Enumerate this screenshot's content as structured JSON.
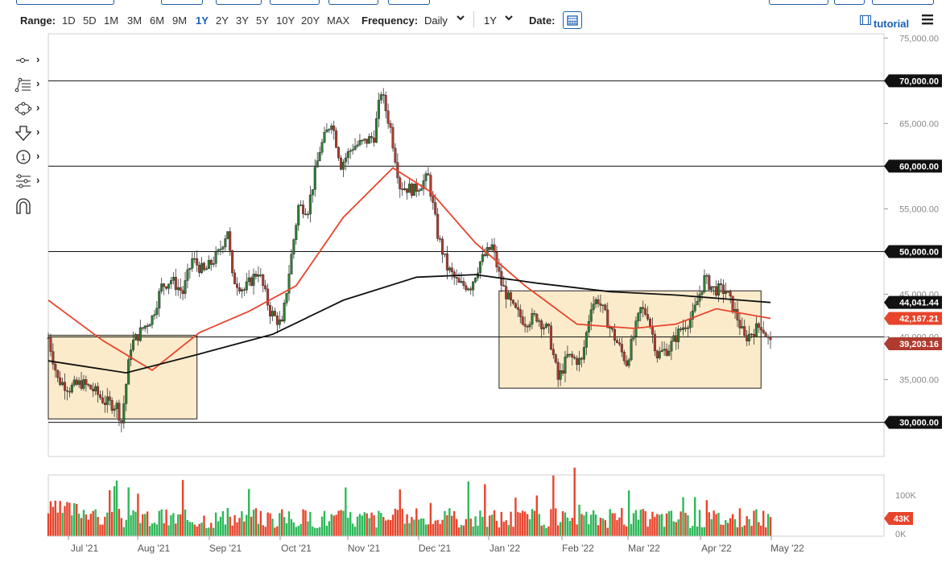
{
  "toolbar": {
    "range_label": "Range:",
    "ranges": [
      "1D",
      "5D",
      "1M",
      "3M",
      "6M",
      "9M",
      "1Y",
      "2Y",
      "3Y",
      "5Y",
      "10Y",
      "20Y",
      "MAX"
    ],
    "active_range": "1Y",
    "frequency_label": "Frequency:",
    "frequency_value": "Daily",
    "period_value": "1Y",
    "date_label": "Date:",
    "tutorial_label": "tutorial"
  },
  "side_tools": [
    "crosshair-tool-icon",
    "fibonacci-tool-icon",
    "shape-tool-icon",
    "arrow-tool-icon",
    "annotation-tool-icon",
    "indicator-tool-icon",
    "magnet-icon"
  ],
  "colors": {
    "up": "#2e7d32",
    "down": "#b03a2e",
    "ma_fast": "#e8442c",
    "ma_slow": "#111111",
    "box_fill": "#fbe7c2",
    "accent": "#1a5fb4"
  },
  "chart_data": {
    "type": "candlestick",
    "price_axis": {
      "ticks": [
        75000,
        70000,
        65000,
        60000,
        55000,
        50000,
        45000,
        40000,
        35000,
        30000
      ],
      "tick_labels": [
        "75,000.00",
        "70,000.00",
        "65,000.00",
        "60,000.00",
        "55,000.00",
        "50,000.00",
        "45,000.00",
        "40,000.00",
        "35,000.00",
        "30,000.00"
      ],
      "range": [
        26000,
        75500
      ]
    },
    "x_axis": {
      "labels": [
        "Jul '21",
        "Aug '21",
        "Sep '21",
        "Oct '21",
        "Nov '21",
        "Dec '21",
        "Jan '22",
        "Feb '22",
        "Mar '22",
        "Apr '22",
        "May '22"
      ]
    },
    "horizontal_lines": [
      70000,
      60000,
      50000,
      40000,
      30000
    ],
    "horizontal_line_labels": [
      "70,000.00",
      "60,000.00",
      "50,000.00",
      "30,000.00"
    ],
    "boxes": [
      {
        "start": "2021-06-22",
        "end": "2021-08-24",
        "top": 40200,
        "bottom": 30400
      },
      {
        "start": "2021-12-30",
        "end": "2022-04-20",
        "top": 45400,
        "bottom": 34000
      }
    ],
    "value_tags": [
      {
        "label": "44,041.44",
        "value": 44041.44,
        "series": "ma_slow"
      },
      {
        "label": "42,167.21",
        "value": 42167.21,
        "series": "ma_fast"
      },
      {
        "label": "39,203.16",
        "value": 39203.16,
        "series": "price"
      }
    ],
    "close_series": [
      [
        "2021-06-22",
        39900
      ],
      [
        "2021-06-26",
        35000
      ],
      [
        "2021-07-01",
        34000
      ],
      [
        "2021-07-06",
        34600
      ],
      [
        "2021-07-11",
        33800
      ],
      [
        "2021-07-16",
        32400
      ],
      [
        "2021-07-21",
        31900
      ],
      [
        "2021-07-23",
        30000
      ],
      [
        "2021-07-27",
        39000
      ],
      [
        "2021-08-01",
        41000
      ],
      [
        "2021-08-05",
        42300
      ],
      [
        "2021-08-09",
        45900
      ],
      [
        "2021-08-13",
        46700
      ],
      [
        "2021-08-18",
        45200
      ],
      [
        "2021-08-22",
        49100
      ],
      [
        "2021-08-27",
        47600
      ],
      [
        "2021-09-02",
        49700
      ],
      [
        "2021-09-06",
        52600
      ],
      [
        "2021-09-08",
        46900
      ],
      [
        "2021-09-13",
        45500
      ],
      [
        "2021-09-19",
        47800
      ],
      [
        "2021-09-24",
        43000
      ],
      [
        "2021-09-29",
        41300
      ],
      [
        "2021-10-02",
        47600
      ],
      [
        "2021-10-06",
        55300
      ],
      [
        "2021-10-10",
        55000
      ],
      [
        "2021-10-15",
        61900
      ],
      [
        "2021-10-20",
        65400
      ],
      [
        "2021-10-24",
        60200
      ],
      [
        "2021-10-29",
        62300
      ],
      [
        "2021-11-03",
        62800
      ],
      [
        "2021-11-07",
        63500
      ],
      [
        "2021-11-10",
        68800
      ],
      [
        "2021-11-14",
        64400
      ],
      [
        "2021-11-18",
        57700
      ],
      [
        "2021-11-24",
        57200
      ],
      [
        "2021-11-30",
        58700
      ],
      [
        "2021-12-04",
        52000
      ],
      [
        "2021-12-08",
        48100
      ],
      [
        "2021-12-13",
        46100
      ],
      [
        "2021-12-18",
        46000
      ],
      [
        "2021-12-22",
        48800
      ],
      [
        "2021-12-27",
        50600
      ],
      [
        "2021-12-31",
        46200
      ],
      [
        "2022-01-05",
        43300
      ],
      [
        "2022-01-10",
        41800
      ],
      [
        "2022-01-15",
        42400
      ],
      [
        "2022-01-20",
        40600
      ],
      [
        "2022-01-24",
        35000
      ],
      [
        "2022-01-28",
        37700
      ],
      [
        "2022-02-03",
        37100
      ],
      [
        "2022-02-07",
        43800
      ],
      [
        "2022-02-10",
        44400
      ],
      [
        "2022-02-16",
        40500
      ],
      [
        "2022-02-22",
        37000
      ],
      [
        "2022-02-28",
        43200
      ],
      [
        "2022-03-03",
        42700
      ],
      [
        "2022-03-07",
        37900
      ],
      [
        "2022-03-12",
        38700
      ],
      [
        "2022-03-17",
        40900
      ],
      [
        "2022-03-22",
        42400
      ],
      [
        "2022-03-27",
        46800
      ],
      [
        "2022-03-31",
        45600
      ],
      [
        "2022-04-05",
        45400
      ],
      [
        "2022-04-10",
        42200
      ],
      [
        "2022-04-13",
        39800
      ],
      [
        "2022-04-16",
        40500
      ],
      [
        "2022-04-20",
        41400
      ],
      [
        "2022-04-24",
        39200
      ]
    ],
    "ma_fast": [
      [
        "2021-06-22",
        44300
      ],
      [
        "2021-07-15",
        39600
      ],
      [
        "2021-08-05",
        36100
      ],
      [
        "2021-08-25",
        40500
      ],
      [
        "2021-09-15",
        43000
      ],
      [
        "2021-10-05",
        46000
      ],
      [
        "2021-10-25",
        54000
      ],
      [
        "2021-11-15",
        59800
      ],
      [
        "2021-12-01",
        57000
      ],
      [
        "2021-12-20",
        51000
      ],
      [
        "2022-01-10",
        46000
      ],
      [
        "2022-02-01",
        41500
      ],
      [
        "2022-02-25",
        41000
      ],
      [
        "2022-03-15",
        41500
      ],
      [
        "2022-04-01",
        43300
      ],
      [
        "2022-04-24",
        42167
      ]
    ],
    "ma_slow": [
      [
        "2021-06-22",
        37200
      ],
      [
        "2021-07-25",
        35800
      ],
      [
        "2021-08-25",
        38000
      ],
      [
        "2021-09-25",
        40300
      ],
      [
        "2021-10-25",
        44300
      ],
      [
        "2021-11-25",
        47000
      ],
      [
        "2021-12-20",
        47300
      ],
      [
        "2022-01-15",
        46300
      ],
      [
        "2022-02-15",
        45300
      ],
      [
        "2022-03-15",
        44900
      ],
      [
        "2022-04-24",
        44041
      ]
    ],
    "volume": {
      "ticks": [
        "100K",
        "0K"
      ],
      "current_label": "43K"
    }
  }
}
